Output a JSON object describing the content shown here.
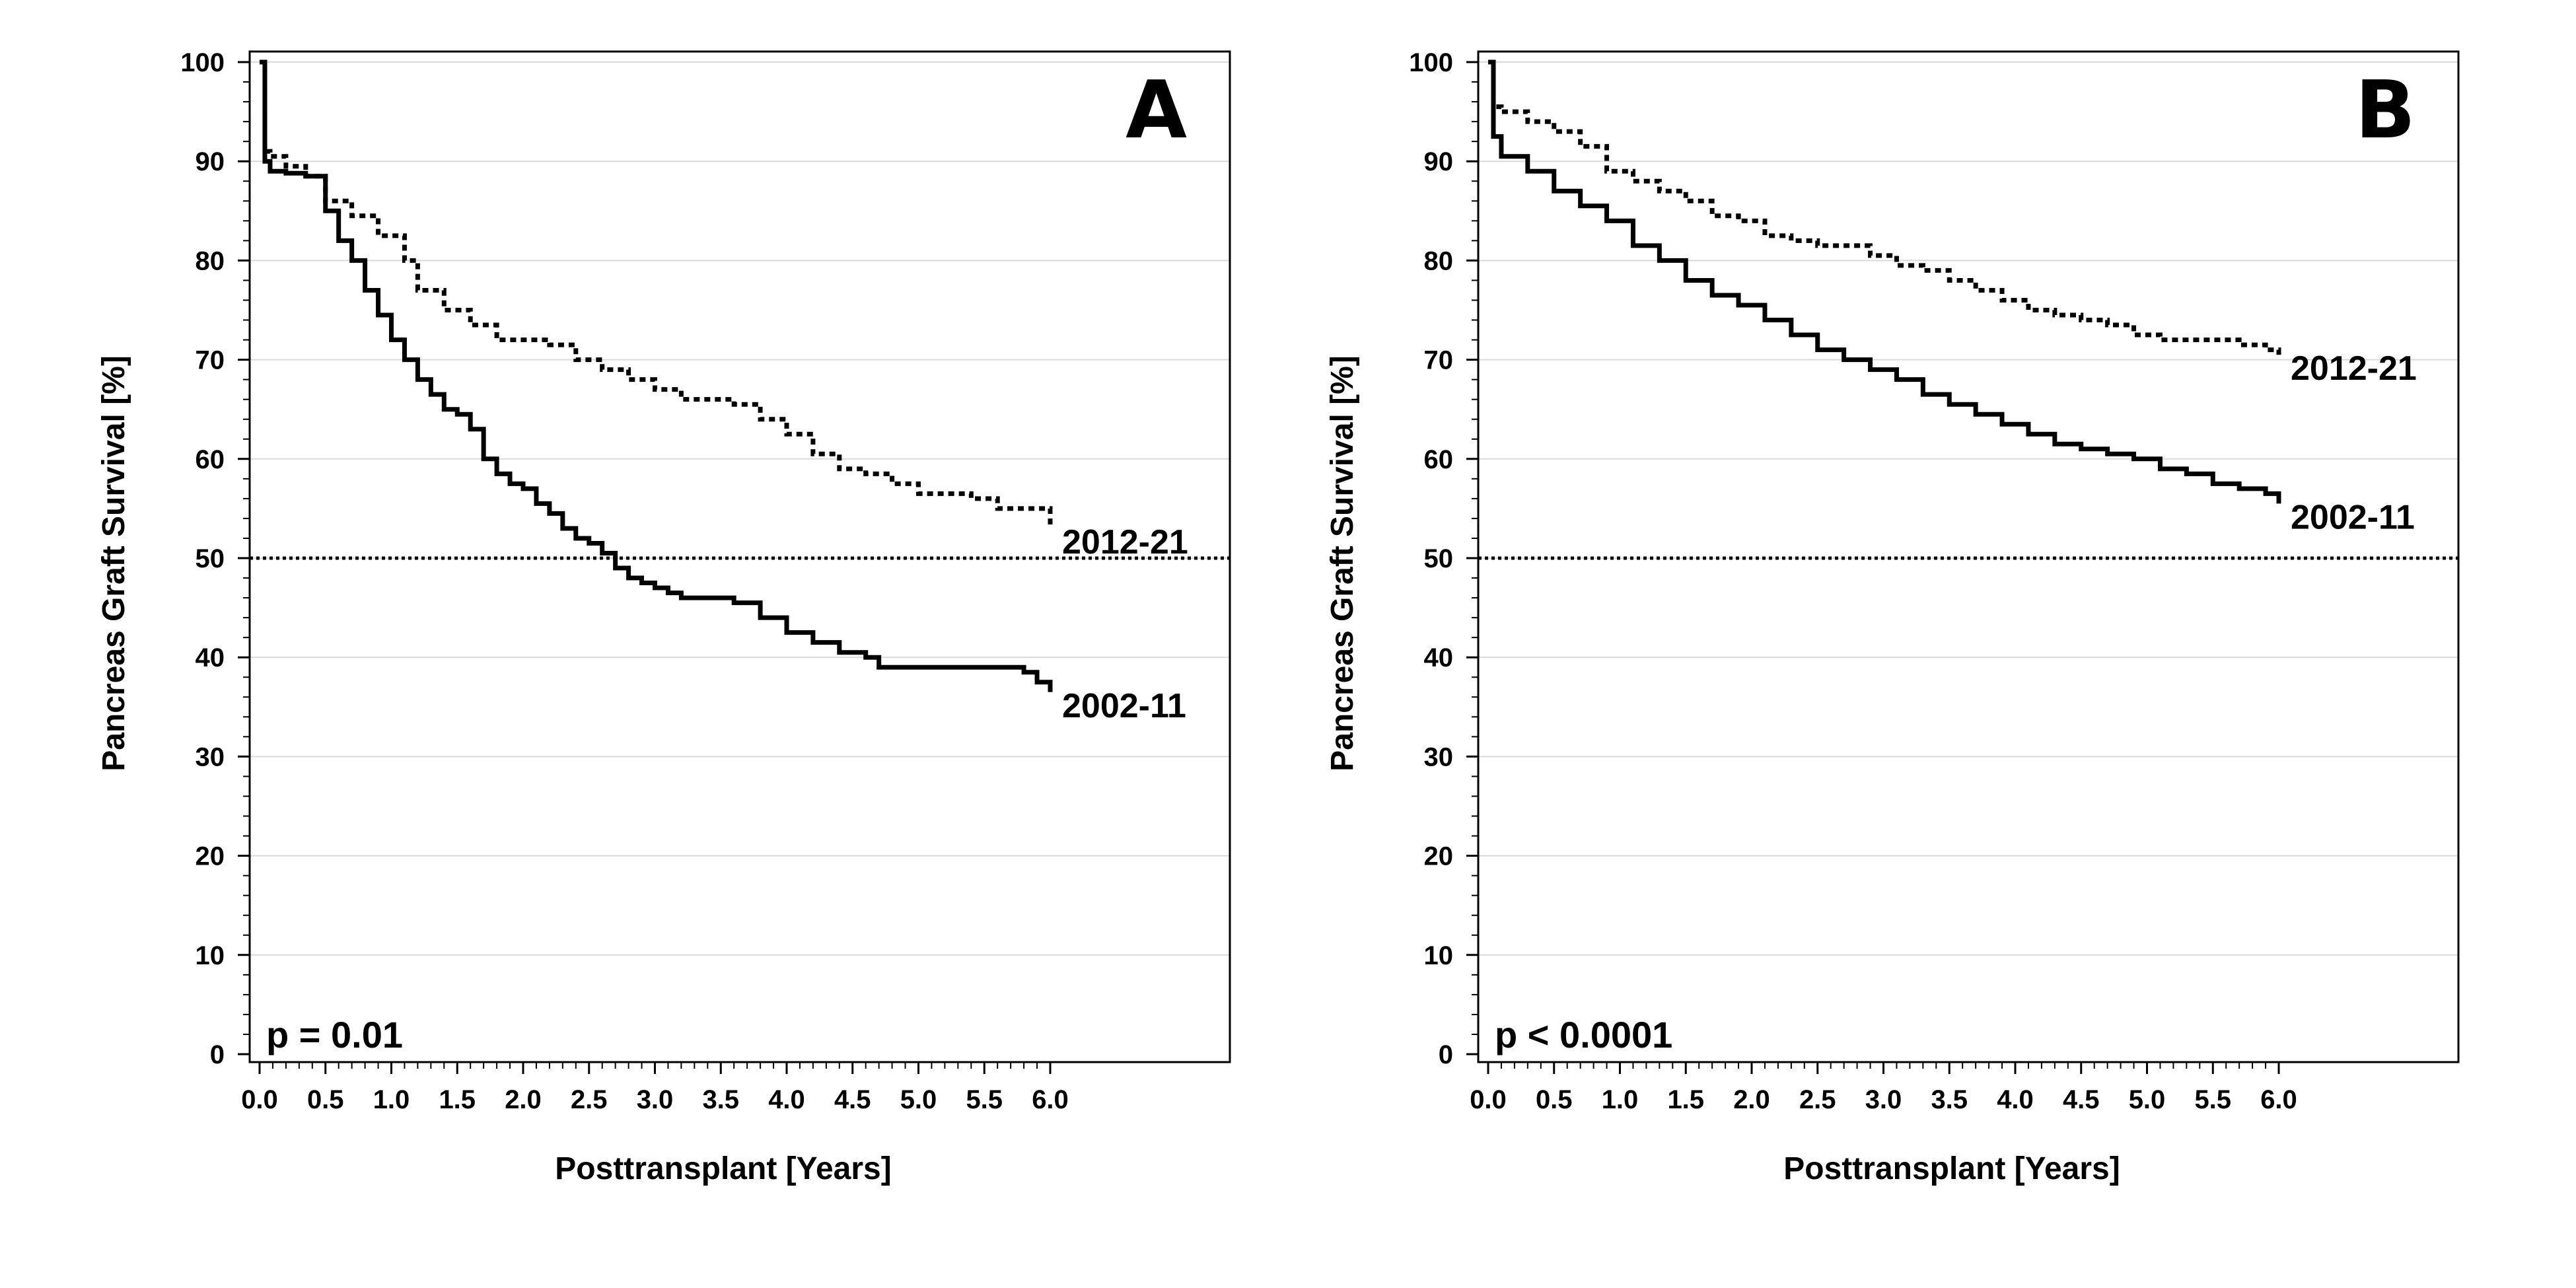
{
  "chart_data": [
    {
      "type": "line",
      "panel_label": "A",
      "xlabel": "Posttransplant [Years]",
      "ylabel": "Pancreas Graft Survival [%]",
      "xlim": [
        0,
        7.4
      ],
      "ylim": [
        0,
        100
      ],
      "xticks": [
        "0.0",
        "0.5",
        "1.0",
        "1.5",
        "2.0",
        "2.5",
        "3.0",
        "3.5",
        "4.0",
        "4.5",
        "5.0",
        "5.5",
        "6.0"
      ],
      "yticks": [
        "0",
        "10",
        "20",
        "30",
        "40",
        "50",
        "60",
        "70",
        "80",
        "90",
        "100"
      ],
      "grid": true,
      "reference_line_y": 50,
      "annotation": "p = 0.01",
      "series": [
        {
          "name": "2002-11",
          "style": "solid",
          "x": [
            0,
            0.04,
            0.08,
            0.2,
            0.35,
            0.5,
            0.6,
            0.7,
            0.8,
            0.9,
            1.0,
            1.1,
            1.2,
            1.3,
            1.4,
            1.5,
            1.6,
            1.7,
            1.8,
            1.9,
            2.0,
            2.1,
            2.2,
            2.3,
            2.4,
            2.5,
            2.6,
            2.7,
            2.8,
            2.9,
            3.0,
            3.1,
            3.2,
            3.4,
            3.6,
            3.8,
            4.0,
            4.2,
            4.4,
            4.6,
            4.7,
            4.9,
            5.2,
            5.4,
            5.6,
            5.8,
            5.9,
            6.0
          ],
          "y": [
            100,
            90,
            89,
            88.8,
            88.5,
            85,
            82,
            80,
            77,
            74.5,
            72,
            70,
            68,
            66.5,
            65,
            64.5,
            63,
            60,
            58.5,
            57.5,
            57,
            55.5,
            54.5,
            53,
            52,
            51.5,
            50.5,
            49,
            48,
            47.5,
            47,
            46.5,
            46,
            46,
            45.5,
            44,
            42.5,
            41.5,
            40.5,
            40,
            39,
            39,
            39,
            39,
            39,
            38.5,
            37.5,
            36.5
          ]
        },
        {
          "name": "2012-21",
          "style": "dotted",
          "x": [
            0,
            0.04,
            0.08,
            0.2,
            0.35,
            0.5,
            0.7,
            0.9,
            1.1,
            1.2,
            1.4,
            1.6,
            1.8,
            2.0,
            2.2,
            2.4,
            2.6,
            2.8,
            3.0,
            3.2,
            3.4,
            3.6,
            3.8,
            4.0,
            4.2,
            4.4,
            4.6,
            4.8,
            5.0,
            5.2,
            5.4,
            5.6,
            5.8,
            6.0
          ],
          "y": [
            100,
            91,
            90.5,
            89.5,
            88.5,
            86,
            84.5,
            82.5,
            80,
            77,
            75,
            73.5,
            72,
            72,
            71.5,
            70,
            69,
            68,
            67,
            66,
            66,
            65.5,
            64,
            62.5,
            60.5,
            59,
            58.5,
            57.5,
            56.5,
            56.5,
            56,
            55,
            55,
            53
          ]
        }
      ]
    },
    {
      "type": "line",
      "panel_label": "B",
      "xlabel": "Posttransplant [Years]",
      "ylabel": "Pancreas Graft Survival [%]",
      "xlim": [
        0,
        7.4
      ],
      "ylim": [
        0,
        100
      ],
      "xticks": [
        "0.0",
        "0.5",
        "1.0",
        "1.5",
        "2.0",
        "2.5",
        "3.0",
        "3.5",
        "4.0",
        "4.5",
        "5.0",
        "5.5",
        "6.0"
      ],
      "yticks": [
        "0",
        "10",
        "20",
        "30",
        "40",
        "50",
        "60",
        "70",
        "80",
        "90",
        "100"
      ],
      "grid": true,
      "reference_line_y": 50,
      "annotation": "p < 0.0001",
      "series": [
        {
          "name": "2002-11",
          "style": "solid",
          "x": [
            0,
            0.04,
            0.1,
            0.3,
            0.5,
            0.7,
            0.9,
            1.1,
            1.3,
            1.5,
            1.7,
            1.9,
            2.1,
            2.3,
            2.5,
            2.7,
            2.9,
            3.1,
            3.3,
            3.5,
            3.7,
            3.9,
            4.1,
            4.3,
            4.5,
            4.7,
            4.9,
            5.1,
            5.3,
            5.5,
            5.7,
            5.9,
            6.0
          ],
          "y": [
            100,
            92.5,
            90.5,
            89,
            87,
            85.5,
            84,
            81.5,
            80,
            78,
            76.5,
            75.5,
            74,
            72.5,
            71,
            70,
            69,
            68,
            66.5,
            65.5,
            64.5,
            63.5,
            62.5,
            61.5,
            61,
            60.5,
            60,
            59,
            58.5,
            57.5,
            57,
            56.5,
            55.5
          ]
        },
        {
          "name": "2012-21",
          "style": "dotted",
          "x": [
            0,
            0.04,
            0.1,
            0.3,
            0.5,
            0.7,
            0.9,
            1.1,
            1.3,
            1.5,
            1.7,
            1.9,
            2.1,
            2.3,
            2.5,
            2.7,
            2.9,
            3.1,
            3.3,
            3.5,
            3.7,
            3.9,
            4.1,
            4.3,
            4.5,
            4.7,
            4.9,
            5.1,
            5.3,
            5.5,
            5.7,
            5.9,
            6.0
          ],
          "y": [
            100,
            95.5,
            95,
            94,
            93,
            91.5,
            89,
            88,
            87,
            86,
            84.5,
            84,
            82.5,
            82,
            81.5,
            81.5,
            80.5,
            79.5,
            79,
            78,
            77,
            76,
            75,
            74.5,
            74,
            73.5,
            72.5,
            72,
            72,
            72,
            71.5,
            71,
            70.5
          ]
        }
      ]
    }
  ]
}
